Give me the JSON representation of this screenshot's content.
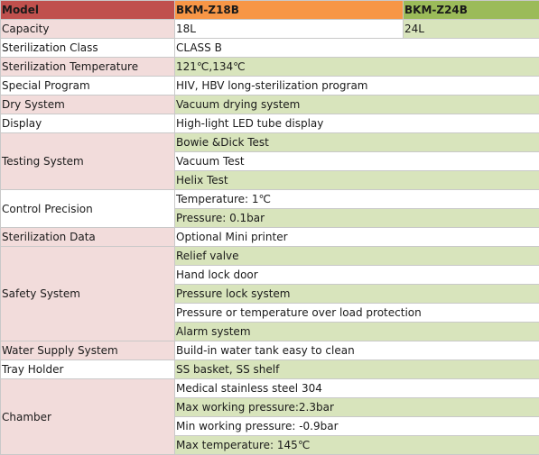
{
  "header": {
    "model": "Model",
    "z18": "BKM-Z18B",
    "z24": "BKM-Z24B"
  },
  "capacity": {
    "label": "Capacity",
    "z18": "18L",
    "z24": "24L"
  },
  "sterilization_class": {
    "label": "Sterilization Class",
    "value": "CLASS B"
  },
  "sterilization_temperature": {
    "label": "Sterilization Temperature",
    "value": "121℃,134℃"
  },
  "special_program": {
    "label": "Special Program",
    "value": "HIV, HBV long-sterilization program"
  },
  "dry_system": {
    "label": "Dry System",
    "value": "Vacuum drying system"
  },
  "display": {
    "label": "Display",
    "value": "High-light LED tube display"
  },
  "testing_system": {
    "label": "Testing System",
    "values": [
      "Bowie &Dick Test",
      "Vacuum Test",
      "Helix Test"
    ]
  },
  "control_precision": {
    "label": "Control Precision",
    "values": [
      "Temperature: 1℃",
      "Pressure: 0.1bar"
    ]
  },
  "sterilization_data": {
    "label": "Sterilization Data",
    "value": "Optional Mini printer"
  },
  "safety_system": {
    "label": "Safety System",
    "values": [
      "Relief valve",
      "Hand lock door",
      "Pressure lock system",
      "Pressure or temperature over load protection",
      "Alarm system"
    ]
  },
  "water_supply_system": {
    "label": "Water Supply System",
    "value": "Build-in water tank easy to clean"
  },
  "tray_holder": {
    "label": "Tray Holder",
    "value": "SS basket, SS shelf"
  },
  "chamber": {
    "label": "Chamber",
    "values": [
      "Medical stainless steel 304",
      "Max working pressure:2.3bar",
      "Min working pressure: -0.9bar",
      "Max temperature: 145℃"
    ]
  }
}
